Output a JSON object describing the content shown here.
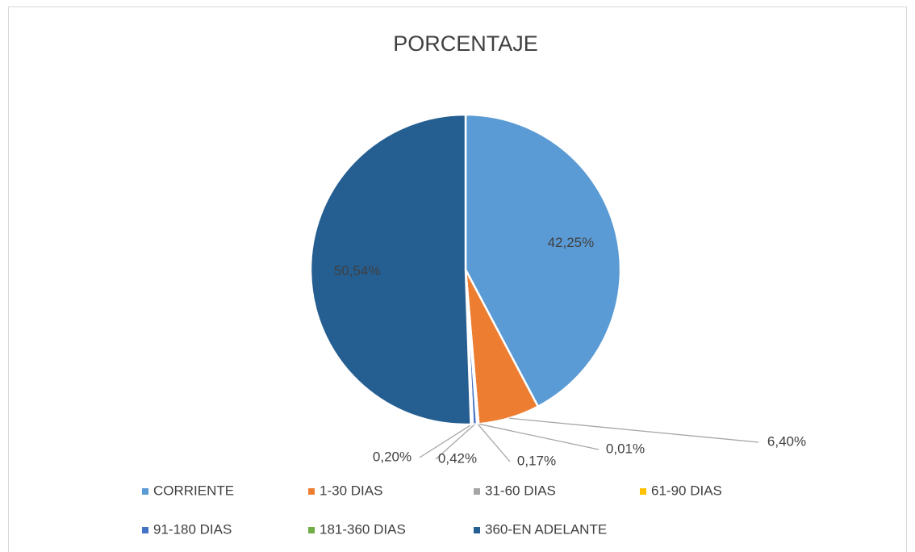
{
  "chart_data": {
    "type": "pie",
    "title": "PORCENTAJE",
    "categories": [
      "CORRIENTE",
      "1-30 DIAS",
      "31-60 DIAS",
      "61-90 DIAS",
      "91-180 DIAS",
      "181-360 DIAS",
      "360-EN ADELANTE"
    ],
    "values": [
      42.25,
      6.4,
      0.01,
      0.17,
      0.42,
      0.2,
      50.54
    ],
    "value_labels": [
      "42,25%",
      "6,40%",
      "0,01%",
      "0,17%",
      "0,42%",
      "0,20%",
      "50,54%"
    ],
    "colors": [
      "#5b9bd5",
      "#ed7d31",
      "#a5a5a5",
      "#ffc000",
      "#4472c4",
      "#70ad47",
      "#255e91"
    ],
    "legend": "bottom"
  }
}
